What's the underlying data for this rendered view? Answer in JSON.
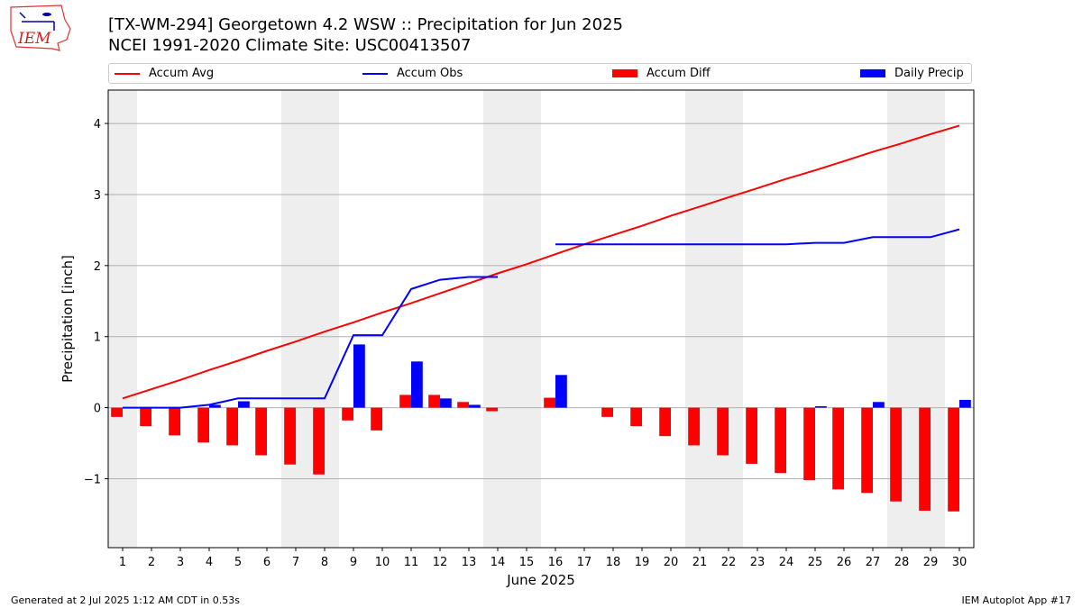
{
  "header": {
    "title": "[TX-WM-294] Georgetown 4.2 WSW :: Precipitation for Jun 2025",
    "subtitle": "NCEI 1991-2020 Climate Site: USC00413507",
    "logo_text": "IEM"
  },
  "legend": {
    "accum_avg": "Accum Avg",
    "accum_obs": "Accum Obs",
    "accum_diff": "Accum Diff",
    "daily_precip": "Daily Precip"
  },
  "footer": {
    "generated": "Generated at 2 Jul 2025 1:12 AM CDT in 0.53s",
    "app": "IEM Autoplot App #17"
  },
  "colors": {
    "accum_avg": "#ff0000",
    "accum_obs": "#0000ff",
    "accum_diff": "#ff0000",
    "daily_precip": "#0000ff",
    "weekend_shade": "#eeeeee",
    "grid": "#b0b0b0"
  },
  "chart_data": {
    "type": "bar",
    "xlabel": "June 2025",
    "ylabel": "Precipitation [inch]",
    "xlim": [
      0.5,
      30.5
    ],
    "ylim": [
      -1.97,
      4.47
    ],
    "yticks": [
      -1,
      0,
      1,
      2,
      3,
      4
    ],
    "ytick_labels": [
      "−1",
      "0",
      "1",
      "2",
      "3",
      "4"
    ],
    "grid": "horizontal",
    "legend_position": "top",
    "days": [
      1,
      2,
      3,
      4,
      5,
      6,
      7,
      8,
      9,
      10,
      11,
      12,
      13,
      14,
      15,
      16,
      17,
      18,
      19,
      20,
      21,
      22,
      23,
      24,
      25,
      26,
      27,
      28,
      29,
      30
    ],
    "weekend_days": [
      1,
      7,
      8,
      14,
      15,
      21,
      22,
      28,
      29
    ],
    "series": [
      {
        "name": "Accum Avg",
        "type": "line",
        "values": [
          0.13,
          0.26,
          0.39,
          0.53,
          0.66,
          0.8,
          0.93,
          1.07,
          1.2,
          1.34,
          1.47,
          1.61,
          1.75,
          1.89,
          2.02,
          2.16,
          2.3,
          2.43,
          2.56,
          2.7,
          2.83,
          2.96,
          3.09,
          3.22,
          3.34,
          3.47,
          3.6,
          3.72,
          3.85,
          3.97
        ]
      },
      {
        "name": "Accum Obs",
        "type": "line",
        "values": [
          0.0,
          0.0,
          0.0,
          0.04,
          0.13,
          0.13,
          0.13,
          0.13,
          1.02,
          1.02,
          1.67,
          1.8,
          1.84,
          1.84,
          null,
          2.3,
          2.3,
          2.3,
          2.3,
          2.3,
          2.3,
          2.3,
          2.3,
          2.3,
          2.32,
          2.32,
          2.4,
          2.4,
          2.4,
          2.51
        ]
      },
      {
        "name": "Accum Diff",
        "type": "bar",
        "values": [
          -0.13,
          -0.26,
          -0.39,
          -0.49,
          -0.53,
          -0.67,
          -0.8,
          -0.94,
          -0.18,
          -0.32,
          0.18,
          0.18,
          0.08,
          -0.05,
          null,
          0.14,
          0.0,
          -0.13,
          -0.26,
          -0.4,
          -0.53,
          -0.67,
          -0.79,
          -0.92,
          -1.02,
          -1.15,
          -1.2,
          -1.32,
          -1.45,
          -1.46
        ]
      },
      {
        "name": "Daily Precip",
        "type": "bar",
        "values": [
          0.0,
          0.0,
          0.0,
          0.04,
          0.09,
          0.0,
          0.0,
          0.0,
          0.89,
          0.0,
          0.65,
          0.13,
          0.04,
          0.0,
          null,
          0.46,
          0.0,
          0.0,
          0.0,
          0.0,
          0.0,
          0.0,
          0.0,
          0.0,
          0.02,
          0.0,
          0.08,
          0.0,
          0.0,
          0.11
        ]
      }
    ]
  }
}
